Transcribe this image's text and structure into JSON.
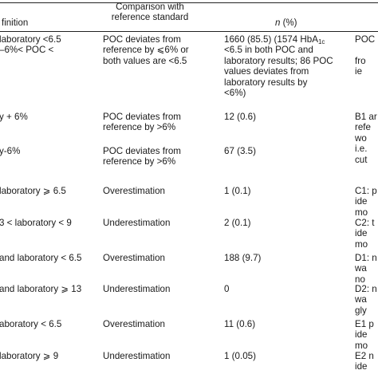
{
  "header": {
    "col1": "finition",
    "col2_line1": "Comparison with",
    "col2_line2": "reference standard",
    "col3_n": "n",
    "col3_rest": " (%)"
  },
  "rows": [
    {
      "col1_lines": [
        "laboratory <6.5",
        "–6%< POC <"
      ],
      "col2_lines": [
        "POC deviates from",
        "reference by ⩽6% or",
        "both values are <6.5"
      ],
      "col3_lines": [
        "1660 (85.5) (1574 HbA1c",
        "<6.5 in both POC and",
        "laboratory results; 86 POC",
        "values deviates from",
        "laboratory results by",
        "<6%)"
      ],
      "col4_lines": [
        "POC",
        "",
        "fro",
        "ie"
      ]
    },
    {
      "col1_lines": [
        "y + 6%"
      ],
      "col2_lines": [
        "POC deviates from",
        "reference by >6%"
      ],
      "col3_lines": [
        "12 (0.6)"
      ],
      "col4_lines": [
        "B1 ar",
        "refe",
        "wo",
        "i.e.",
        "cut"
      ]
    },
    {
      "col1_lines": [
        "y-6%"
      ],
      "col2_lines": [
        "POC deviates from",
        "reference by >6%"
      ],
      "col3_lines": [
        "67 (3.5)"
      ],
      "col4_lines": []
    },
    {
      "col1_lines": [
        "laboratory ⩾ 6.5"
      ],
      "col2_lines": [
        "Overestimation"
      ],
      "col3_lines": [
        "1 (0.1)"
      ],
      "col4_lines": [
        "C1: p",
        "ide",
        "mo"
      ]
    },
    {
      "col1_lines": [
        "3 < laboratory < 9"
      ],
      "col2_lines": [
        "Underestimation"
      ],
      "col3_lines": [
        "2 (0.1)"
      ],
      "col4_lines": [
        "C2: t",
        "ide",
        "mo"
      ]
    },
    {
      "col1_lines": [
        "and laboratory < 6.5"
      ],
      "col2_lines": [
        "Overestimation"
      ],
      "col3_lines": [
        "188 (9.7)"
      ],
      "col4_lines": [
        "D1: n",
        "wa",
        "no"
      ]
    },
    {
      "col1_lines": [
        "and laboratory ⩾ 13"
      ],
      "col2_lines": [
        "Underestimation"
      ],
      "col3_lines": [
        "0"
      ],
      "col4_lines": [
        "D2: n",
        "wa",
        "gly"
      ]
    },
    {
      "col1_lines": [
        "aboratory < 6.5"
      ],
      "col2_lines": [
        "Overestimation"
      ],
      "col3_lines": [
        "11 (0.6)"
      ],
      "col4_lines": [
        "E1 p",
        "ide",
        "mo"
      ]
    },
    {
      "col1_lines": [
        "laboratory ⩾ 9"
      ],
      "col2_lines": [
        "Underestimation"
      ],
      "col3_lines": [
        "1 (0.05)"
      ],
      "col4_lines": [
        "E2 n",
        "ide"
      ]
    }
  ]
}
